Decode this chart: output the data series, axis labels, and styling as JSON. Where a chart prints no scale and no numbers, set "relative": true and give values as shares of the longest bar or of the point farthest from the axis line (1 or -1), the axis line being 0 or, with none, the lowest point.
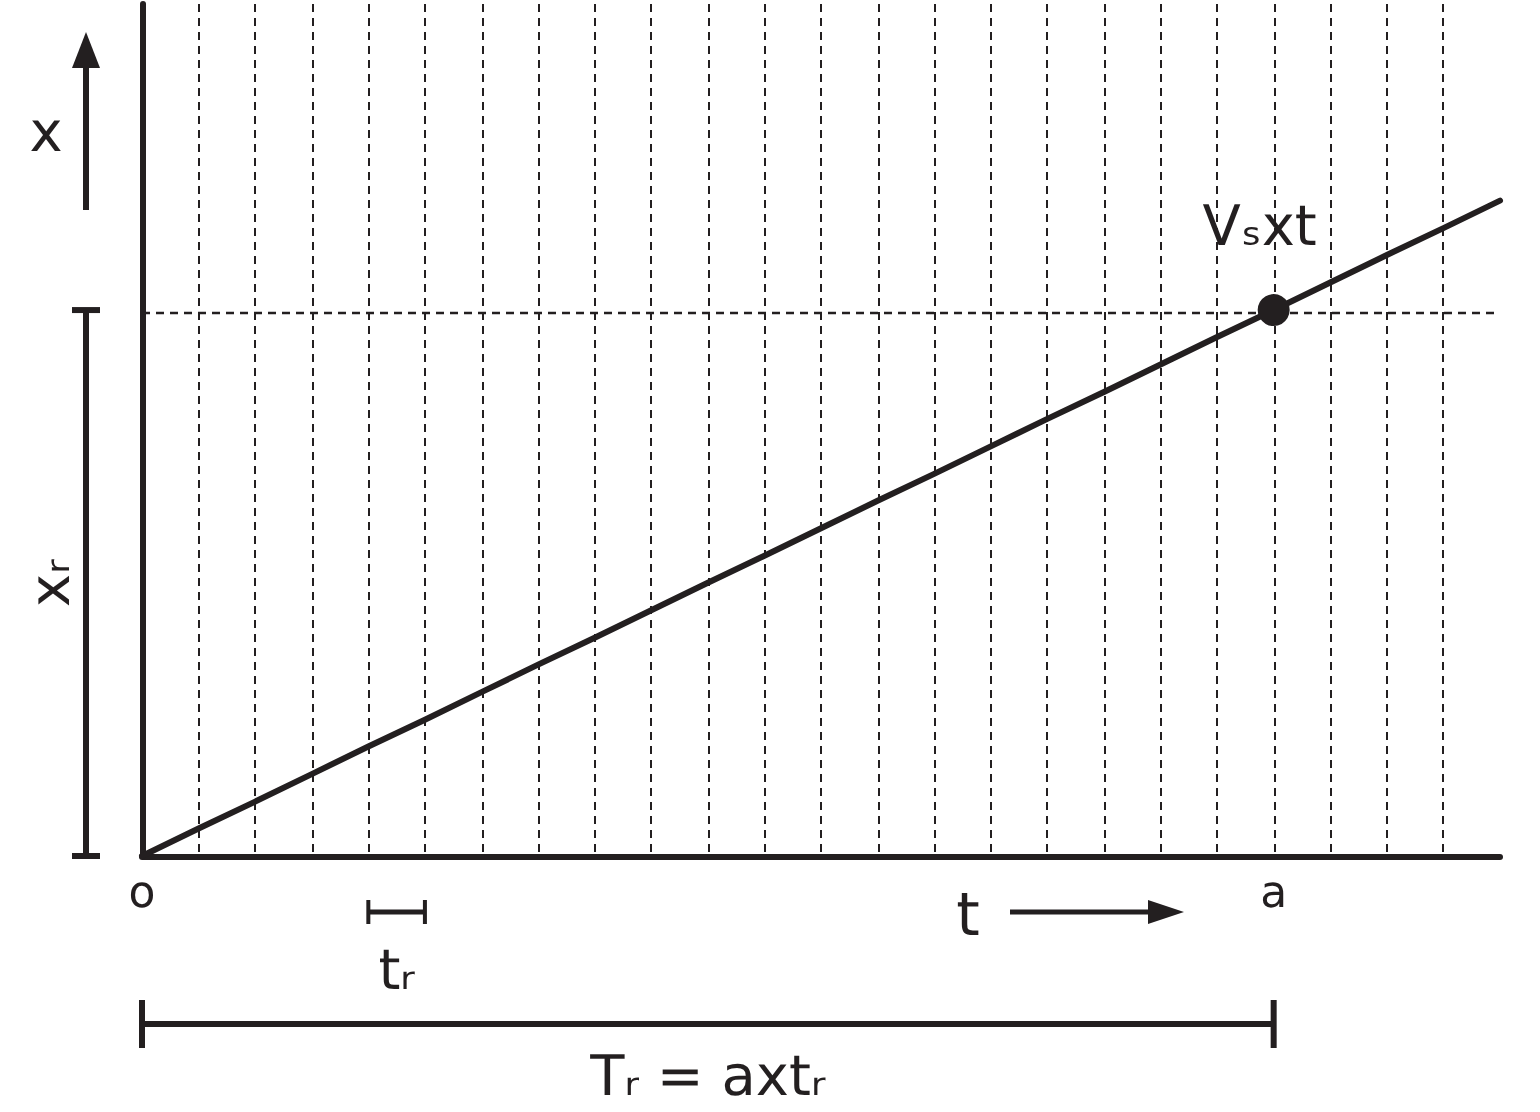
{
  "chart_data": {
    "type": "line",
    "relative": true,
    "xlabel": "t",
    "ylabel": "x",
    "categories": [
      "o",
      null,
      null,
      null,
      null,
      null,
      null,
      null,
      null,
      null,
      null,
      null,
      null,
      null,
      null,
      null,
      null,
      null,
      null,
      null,
      "a",
      null,
      null,
      null,
      null
    ],
    "grid": "x",
    "line_style": "solid",
    "series": [
      {
        "type": "line",
        "color": "#231f20",
        "marker": "none",
        "values": [
          0,
          0.042,
          0.083,
          0.125,
          0.167,
          0.208,
          0.25,
          0.292,
          0.333,
          0.375,
          0.417,
          0.458,
          0.5,
          0.542,
          0.583,
          0.625,
          0.667,
          0.708,
          0.75,
          0.792,
          0.833,
          0.875,
          0.917,
          0.958,
          1
        ]
      },
      {
        "type": "scatter",
        "color": "#231f20",
        "marker": "circle",
        "values": [
          null,
          null,
          null,
          null,
          null,
          null,
          null,
          null,
          null,
          null,
          null,
          null,
          null,
          null,
          null,
          null,
          null,
          null,
          null,
          null,
          0.833,
          null,
          null,
          null,
          null
        ]
      }
    ],
    "ref_lines": [
      {
        "axis": "y",
        "value": 0.833,
        "color": "#231f20",
        "line_style": "dashed"
      }
    ],
    "annotations": [
      {
        "text": "Vₛxt",
        "x": "a",
        "y": 0.833
      },
      "xᵣ",
      "tᵣ",
      "Tᵣ = axtᵣ"
    ]
  }
}
